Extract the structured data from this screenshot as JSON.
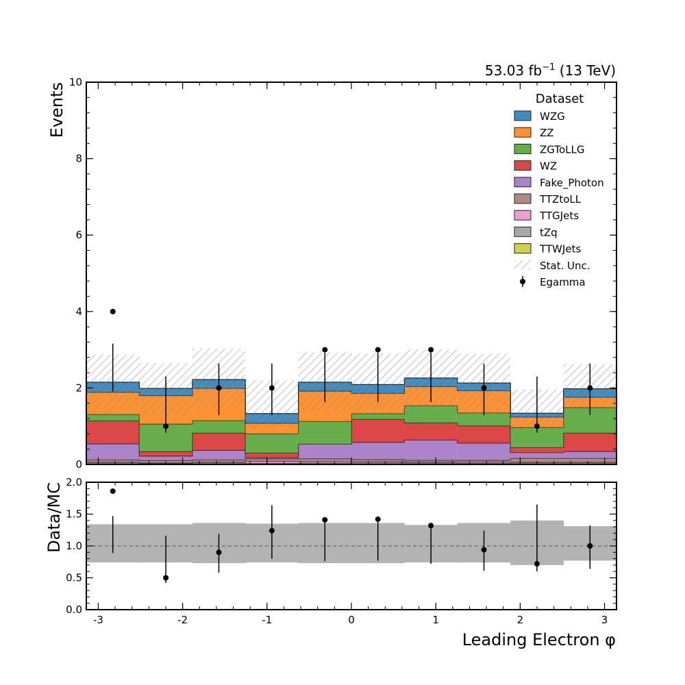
{
  "lumi": {
    "main": "53.03 fb",
    "exp": "−1",
    "energy": " (13 TeV)"
  },
  "chart_data": [
    {
      "type": "bar",
      "subtype": "stacked-histogram",
      "xlabel": "Leading Electron φ",
      "ylabel": "Events",
      "xlim": [
        -3.14159,
        3.14159
      ],
      "ylim": [
        0,
        10
      ],
      "xticks": [
        -3,
        -2,
        -1,
        0,
        1,
        2,
        3
      ],
      "xtick_labels": [
        "-3",
        "-2",
        "-1",
        "0",
        "1",
        "2",
        "3"
      ],
      "yticks": [
        0,
        2,
        4,
        6,
        8,
        10
      ],
      "ytick_labels": [
        "0",
        "2",
        "4",
        "6",
        "8",
        "10"
      ],
      "bin_edges": [
        -3.14159,
        -2.51327,
        -1.88496,
        -1.25664,
        -0.62832,
        0,
        0.62832,
        1.25664,
        1.88496,
        2.51327,
        3.14159
      ],
      "series": [
        {
          "name": "TTWJets",
          "color": "#c8c837",
          "values": [
            0.01,
            0.01,
            0.01,
            0.01,
            0.01,
            0.01,
            0.01,
            0.01,
            0.01,
            0.01
          ]
        },
        {
          "name": "tZq",
          "color": "#999999",
          "values": [
            0.03,
            0.02,
            0.03,
            0.02,
            0.02,
            0.03,
            0.03,
            0.02,
            0.03,
            0.03
          ]
        },
        {
          "name": "TTGJets",
          "color": "#e78fcb",
          "values": [
            0.02,
            0.01,
            0.02,
            0.05,
            0.04,
            0.03,
            0.02,
            0.03,
            0.02,
            0.02
          ]
        },
        {
          "name": "TTZtoLL",
          "color": "#a0756c",
          "values": [
            0.06,
            0.06,
            0.06,
            0.07,
            0.08,
            0.06,
            0.05,
            0.05,
            0.1,
            0.1
          ]
        },
        {
          "name": "Fake_Photon",
          "color": "#9e6cbf",
          "values": [
            0.42,
            0.12,
            0.25,
            0.03,
            0.38,
            0.45,
            0.53,
            0.45,
            0.15,
            0.18
          ]
        },
        {
          "name": "WZ",
          "color": "#d62728",
          "values": [
            0.6,
            0.12,
            0.45,
            0.12,
            0.0,
            0.6,
            0.45,
            0.45,
            0.13,
            0.48
          ]
        },
        {
          "name": "ZGToLLG",
          "color": "#4aa02c",
          "values": [
            0.17,
            0.72,
            0.33,
            0.5,
            0.6,
            0.15,
            0.45,
            0.34,
            0.53,
            0.67
          ]
        },
        {
          "name": "ZZ",
          "color": "#ff7f0e",
          "values": [
            0.58,
            0.74,
            0.84,
            0.28,
            0.79,
            0.53,
            0.5,
            0.58,
            0.27,
            0.27
          ]
        },
        {
          "name": "WZG",
          "color": "#1f77b4",
          "values": [
            0.26,
            0.19,
            0.23,
            0.25,
            0.23,
            0.23,
            0.22,
            0.2,
            0.1,
            0.22
          ]
        }
      ],
      "stat_unc": {
        "name": "Stat. Unc.",
        "up": [
          2.88,
          2.65,
          3.03,
          2.2,
          2.93,
          2.9,
          3.01,
          2.9,
          1.97,
          2.62
        ],
        "down": [
          1.45,
          1.3,
          1.5,
          1.0,
          1.4,
          1.4,
          1.5,
          1.4,
          0.9,
          1.4
        ]
      },
      "data_series": {
        "name": "Egamma",
        "x": [
          -2.82743,
          -2.19911,
          -1.5708,
          -0.94248,
          -0.31416,
          0.31416,
          0.94248,
          1.5708,
          2.19911,
          2.82743
        ],
        "y": [
          4,
          1,
          2,
          2,
          3,
          3,
          3,
          2,
          1,
          2
        ],
        "err_low": [
          1.91,
          0.83,
          1.29,
          1.29,
          1.63,
          1.63,
          1.63,
          1.29,
          0.83,
          1.29
        ],
        "err_high": [
          3.16,
          2.3,
          2.64,
          2.64,
          2.92,
          2.92,
          2.92,
          2.64,
          2.3,
          2.64
        ]
      },
      "legend": {
        "title": "Dataset",
        "placement": "top-right",
        "entries": [
          "WZG",
          "ZZ",
          "ZGToLLG",
          "WZ",
          "Fake_Photon",
          "TTZtoLL",
          "TTGJets",
          "tZq",
          "TTWJets",
          "Stat. Unc.",
          "Egamma"
        ]
      }
    },
    {
      "type": "scatter",
      "subtype": "ratio",
      "xlabel": "Leading Electron φ",
      "ylabel": "Data/MC",
      "xlim": [
        -3.14159,
        3.14159
      ],
      "ylim": [
        0,
        2
      ],
      "yticks": [
        0,
        0.5,
        1,
        1.5,
        2
      ],
      "ytick_labels": [
        "0.0",
        "0.5",
        "1.0",
        "1.5",
        "2.0"
      ],
      "reference_line": 1.0,
      "unc_band": {
        "up": [
          1.34,
          1.34,
          1.36,
          1.35,
          1.36,
          1.36,
          1.33,
          1.36,
          1.4,
          1.31
        ],
        "down": [
          0.74,
          0.74,
          0.73,
          0.74,
          0.73,
          0.73,
          0.74,
          0.74,
          0.7,
          0.77
        ]
      },
      "x": [
        -2.82743,
        -2.19911,
        -1.5708,
        -0.94248,
        -0.31416,
        0.31416,
        0.94248,
        1.5708,
        2.19911,
        2.82743
      ],
      "y": [
        1.86,
        0.5,
        0.9,
        1.24,
        1.41,
        1.42,
        1.32,
        0.94,
        0.72,
        1.0
      ],
      "err_low": [
        0.89,
        0.42,
        0.58,
        0.8,
        0.76,
        0.77,
        0.72,
        0.61,
        0.6,
        0.64
      ],
      "err_high": [
        1.47,
        1.16,
        1.19,
        1.64,
        1.37,
        1.38,
        1.28,
        1.24,
        1.65,
        1.32
      ]
    }
  ]
}
